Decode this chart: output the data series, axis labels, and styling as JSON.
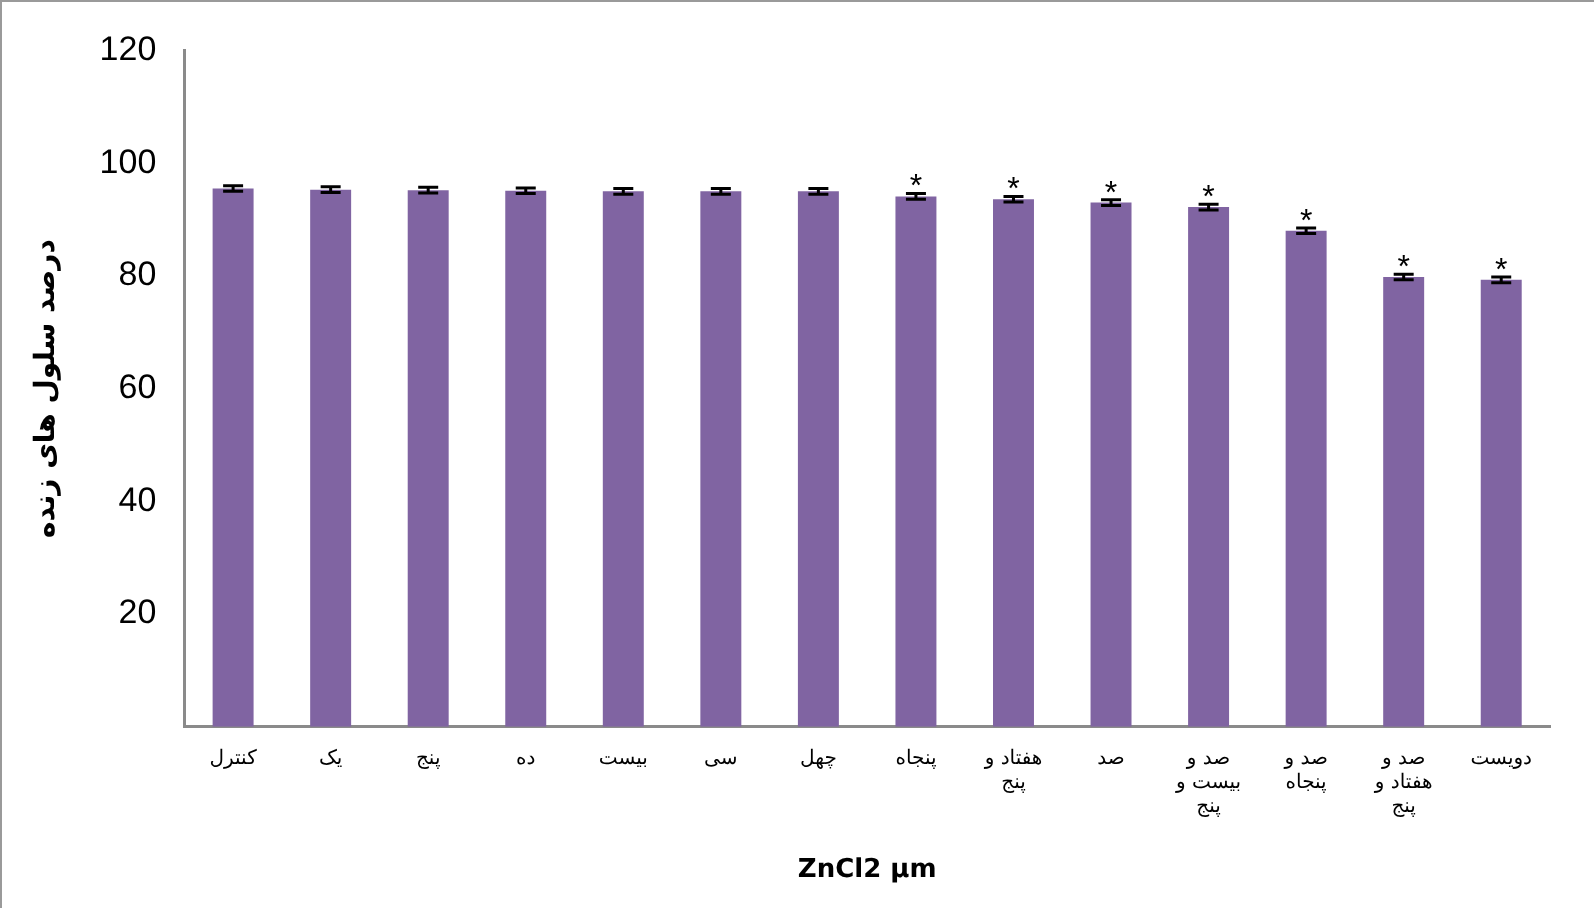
{
  "chart_data": {
    "type": "bar",
    "xlabel": "ZnCl2 µm",
    "ylabel": "درصد سلول های زنده",
    "categories": [
      "کنترل",
      "یک",
      "پنج",
      "ده",
      "بیست",
      "سی",
      "چهل",
      "پنجاه",
      "هفتاد و پنج",
      "صد",
      "صد و بیست و پنج",
      "صد و پنجاه",
      "صد و هفتاد و پنج",
      "دویست"
    ],
    "values": [
      95.5,
      95.3,
      95.2,
      95.1,
      95.0,
      95.0,
      95.0,
      94.1,
      93.6,
      93.0,
      92.2,
      88.0,
      79.8,
      79.3
    ],
    "errors": [
      0.5,
      0.5,
      0.5,
      0.5,
      0.5,
      0.5,
      0.5,
      0.5,
      0.5,
      0.5,
      0.5,
      0.5,
      0.5,
      0.5
    ],
    "color": "#8064a2",
    "ylim": [
      0,
      120
    ],
    "yticks": [
      20,
      40,
      60,
      80,
      100,
      120
    ],
    "grid": false,
    "legend": false,
    "annotations": [
      {
        "text": "*",
        "x": "پنجاه",
        "y": 94.1
      },
      {
        "text": "*",
        "x": "هفتاد و پنج",
        "y": 93.6
      },
      {
        "text": "*",
        "x": "صد",
        "y": 93.0
      },
      {
        "text": "*",
        "x": "صد و بیست و پنج",
        "y": 92.2
      },
      {
        "text": "*",
        "x": "صد و پنجاه",
        "y": 88.0
      },
      {
        "text": "*",
        "x": "صد و هفتاد و پنج",
        "y": 79.8
      },
      {
        "text": "*",
        "x": "دویست",
        "y": 79.3
      }
    ]
  }
}
